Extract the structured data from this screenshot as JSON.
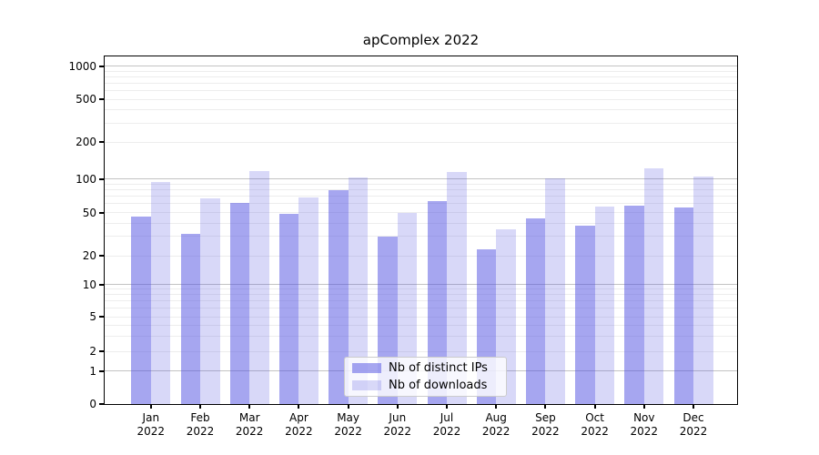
{
  "title": "apComplex 2022",
  "legend": {
    "items": [
      {
        "label": "Nb of distinct IPs",
        "color": "rgba(77,77,225,0.5)"
      },
      {
        "label": "Nb of downloads",
        "color": "rgba(77,77,225,0.22)"
      }
    ]
  },
  "axes": {
    "y_tick_labels": [
      "0",
      "1",
      "2",
      "5",
      "10",
      "20",
      "50",
      "100",
      "200",
      "500",
      "1000"
    ],
    "x_tick_months": [
      "Jan",
      "Feb",
      "Mar",
      "Apr",
      "May",
      "Jun",
      "Jul",
      "Aug",
      "Sep",
      "Oct",
      "Nov",
      "Dec"
    ],
    "x_tick_year": "2022"
  },
  "chart_data": {
    "type": "bar",
    "title": "apComplex 2022",
    "categories": [
      "Jan 2022",
      "Feb 2022",
      "Mar 2022",
      "Apr 2022",
      "May 2022",
      "Jun 2022",
      "Jul 2022",
      "Aug 2022",
      "Sep 2022",
      "Oct 2022",
      "Nov 2022",
      "Dec 2022"
    ],
    "series": [
      {
        "name": "Nb of distinct IPs",
        "values": [
          46,
          32,
          61,
          49,
          79,
          30,
          63,
          23,
          44,
          38,
          58,
          55
        ],
        "color": "rgba(77,77,225,0.5)"
      },
      {
        "name": "Nb of downloads",
        "values": [
          93,
          67,
          115,
          68,
          102,
          50,
          114,
          35,
          101,
          57,
          122,
          105
        ],
        "color": "rgba(77,77,225,0.22)"
      }
    ],
    "xlabel": "",
    "ylabel": "",
    "yscale": "symlog (linear 0-1, log 1-1000)",
    "yticks": [
      0,
      1,
      2,
      5,
      10,
      20,
      50,
      100,
      200,
      500,
      1000
    ],
    "ylim": [
      0,
      1250
    ],
    "grid": "horizontal major (1,10,100,1000) + faint minors",
    "legend_position": "lower center inside plot",
    "bar_colors": {
      "distinct_ips": "#a6a6f0",
      "downloads": "#d8d8f8"
    }
  }
}
